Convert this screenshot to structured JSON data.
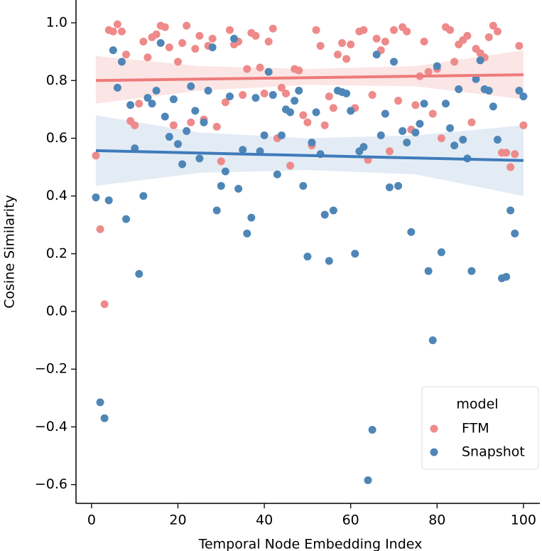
{
  "chart_data": {
    "type": "scatter",
    "xlabel": "Temporal Node Embedding Index",
    "ylabel": "Cosine Similarity",
    "legend_title": "model",
    "legend": "lower right",
    "xlim": [
      -3.6,
      103.8
    ],
    "ylim": [
      -0.665,
      1.079
    ],
    "xticks": [
      0,
      20,
      40,
      60,
      80,
      100
    ],
    "yticks": [
      {
        "value": -0.6,
        "label": "−0.6"
      },
      {
        "value": -0.4,
        "label": "−0.4"
      },
      {
        "value": -0.2,
        "label": "−0.2"
      },
      {
        "value": 0.0,
        "label": "0.0"
      },
      {
        "value": 0.2,
        "label": "0.2"
      },
      {
        "value": 0.4,
        "label": "0.4"
      },
      {
        "value": 0.6,
        "label": "0.6"
      },
      {
        "value": 0.8,
        "label": "0.8"
      },
      {
        "value": 1.0,
        "label": "1.0"
      }
    ],
    "x": [
      1,
      2,
      3,
      4,
      5,
      6,
      7,
      8,
      9,
      10,
      11,
      12,
      13,
      14,
      15,
      16,
      17,
      18,
      19,
      20,
      21,
      22,
      23,
      24,
      25,
      26,
      27,
      28,
      29,
      30,
      31,
      32,
      33,
      34,
      35,
      36,
      37,
      38,
      39,
      40,
      41,
      42,
      43,
      44,
      45,
      46,
      47,
      48,
      49,
      50,
      51,
      52,
      53,
      54,
      55,
      56,
      57,
      58,
      59,
      60,
      61,
      62,
      63,
      64,
      65,
      66,
      67,
      68,
      69,
      70,
      71,
      72,
      73,
      74,
      75,
      76,
      77,
      78,
      79,
      80,
      81,
      82,
      83,
      84,
      85,
      86,
      87,
      88,
      89,
      90,
      91,
      92,
      93,
      94,
      95,
      96,
      97,
      98,
      99,
      100
    ],
    "series": [
      {
        "name": "FTM",
        "color": "#ee8a8a",
        "line_color": "#ee7b7b",
        "band_color": "#fbdcdc",
        "values": [
          0.54,
          0.285,
          0.025,
          0.975,
          0.97,
          0.995,
          0.97,
          0.89,
          0.66,
          0.645,
          0.72,
          0.935,
          0.88,
          0.95,
          0.96,
          0.99,
          0.985,
          0.915,
          0.645,
          0.865,
          0.93,
          0.99,
          0.655,
          0.91,
          0.955,
          0.665,
          0.92,
          0.945,
          0.64,
          0.52,
          0.725,
          0.975,
          0.925,
          0.935,
          0.75,
          0.84,
          0.965,
          0.955,
          0.845,
          0.755,
          0.935,
          0.98,
          0.6,
          0.775,
          0.755,
          0.505,
          0.84,
          0.835,
          0.68,
          0.655,
          0.575,
          0.975,
          0.92,
          0.645,
          0.745,
          0.705,
          0.89,
          0.93,
          0.875,
          0.925,
          0.705,
          0.97,
          0.975,
          0.525,
          0.75,
          0.945,
          0.905,
          0.935,
          0.555,
          0.975,
          0.73,
          0.985,
          0.97,
          0.63,
          0.715,
          0.815,
          0.935,
          0.83,
          0.685,
          0.84,
          0.6,
          0.985,
          0.975,
          0.865,
          0.925,
          0.94,
          0.955,
          0.655,
          0.91,
          0.895,
          0.88,
          0.95,
          0.99,
          0.97,
          0.55,
          0.55,
          0.5,
          0.545,
          0.92,
          0.645
        ],
        "fit": {
          "x": [
            1,
            100
          ],
          "values": [
            0.8,
            0.82
          ],
          "band_x": [
            1,
            25,
            50,
            75,
            100
          ],
          "band_upper": [
            0.885,
            0.85,
            0.84,
            0.85,
            0.905
          ],
          "band_lower": [
            0.72,
            0.765,
            0.785,
            0.78,
            0.735
          ]
        }
      },
      {
        "name": "Snapshot",
        "color": "#4f86b8",
        "line_color": "#3f7bba",
        "band_color": "#d9e5f1",
        "values": [
          0.395,
          -0.315,
          -0.37,
          0.385,
          0.905,
          0.775,
          0.865,
          0.32,
          0.715,
          0.565,
          0.13,
          0.4,
          0.74,
          0.72,
          0.765,
          0.93,
          0.675,
          0.605,
          0.735,
          0.58,
          0.51,
          0.625,
          0.78,
          0.695,
          0.53,
          0.655,
          0.765,
          0.915,
          0.35,
          0.435,
          0.485,
          0.745,
          0.945,
          0.425,
          0.56,
          0.27,
          0.325,
          0.74,
          0.555,
          0.61,
          0.83,
          0.75,
          0.475,
          0.61,
          0.7,
          0.69,
          0.73,
          0.765,
          0.435,
          0.19,
          0.585,
          0.69,
          0.545,
          0.335,
          0.175,
          0.35,
          0.765,
          0.76,
          0.755,
          0.695,
          0.2,
          0.555,
          0.57,
          -0.585,
          -0.41,
          0.89,
          0.61,
          0.685,
          0.43,
          0.865,
          0.435,
          0.625,
          0.585,
          0.275,
          0.62,
          0.65,
          0.72,
          0.14,
          -0.1,
          0.85,
          0.205,
          0.72,
          0.635,
          0.575,
          0.77,
          0.595,
          0.53,
          0.14,
          0.805,
          0.87,
          0.77,
          0.765,
          0.71,
          0.595,
          0.115,
          0.12,
          0.35,
          0.27,
          0.765,
          0.745
        ],
        "fit": {
          "x": [
            1,
            100
          ],
          "values": [
            0.557,
            0.523
          ],
          "band_x": [
            1,
            25,
            50,
            75,
            100
          ],
          "band_upper": [
            0.68,
            0.62,
            0.6,
            0.61,
            0.645
          ],
          "band_lower": [
            0.435,
            0.48,
            0.49,
            0.475,
            0.4
          ]
        }
      }
    ]
  }
}
